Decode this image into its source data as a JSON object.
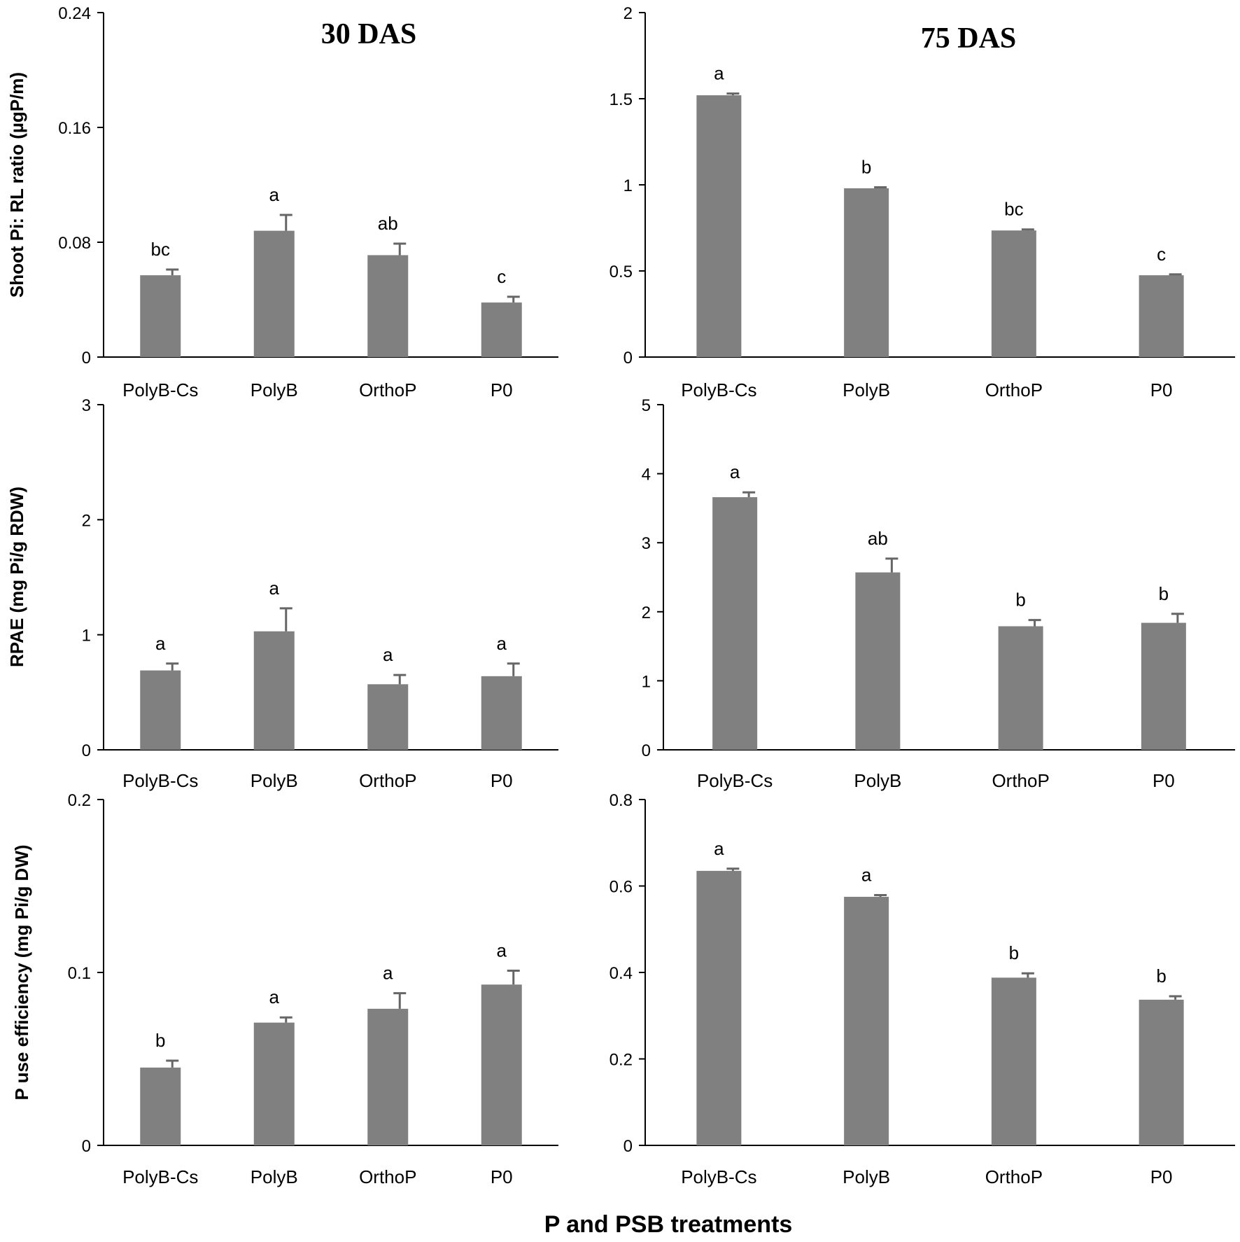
{
  "colors": {
    "bar": "#808080",
    "axis": "#000000",
    "error": "#666666"
  },
  "x_axis_title": "P and PSB treatments",
  "chart_data": [
    {
      "type": "bar",
      "title": "30 DAS",
      "ylabel": "Shoot Pi: RL ratio (µgP/m)",
      "categories": [
        "PolyB-Cs",
        "PolyB",
        "OrthoP",
        "P0"
      ],
      "values": [
        0.057,
        0.088,
        0.071,
        0.038
      ],
      "errors": [
        0.004,
        0.011,
        0.008,
        0.004
      ],
      "significance": [
        "bc",
        "a",
        "ab",
        "c"
      ],
      "ylim": [
        0,
        0.24
      ],
      "yticks": [
        0,
        0.08,
        0.16,
        0.24
      ],
      "ytick_labels": [
        "0",
        "0.08",
        "0.16",
        "0.24"
      ]
    },
    {
      "type": "bar",
      "title": "75 DAS",
      "ylabel": "",
      "categories": [
        "PolyB-Cs",
        "PolyB",
        "OrthoP",
        "P0"
      ],
      "values": [
        1.52,
        0.98,
        0.735,
        0.475
      ],
      "errors": [
        0.01,
        0.006,
        0.006,
        0.005
      ],
      "significance": [
        "a",
        "b",
        "bc",
        "c"
      ],
      "ylim": [
        0,
        2
      ],
      "yticks": [
        0,
        0.5,
        1,
        1.5,
        2
      ],
      "ytick_labels": [
        "0",
        "0.5",
        "1",
        "1.5",
        "2"
      ]
    },
    {
      "type": "bar",
      "title": "",
      "ylabel": "RPAE (mg Pi/g RDW)",
      "categories": [
        "PolyB-Cs",
        "PolyB",
        "OrthoP",
        "P0"
      ],
      "values": [
        0.69,
        1.03,
        0.57,
        0.64
      ],
      "errors": [
        0.06,
        0.2,
        0.08,
        0.11
      ],
      "significance": [
        "a",
        "a",
        "a",
        "a"
      ],
      "ylim": [
        0,
        3
      ],
      "yticks": [
        0,
        1,
        2,
        3
      ],
      "ytick_labels": [
        "0",
        "1",
        "2",
        "3"
      ]
    },
    {
      "type": "bar",
      "title": "",
      "ylabel": "",
      "categories": [
        "PolyB-Cs",
        "PolyB",
        "OrthoP",
        "P0"
      ],
      "values": [
        3.66,
        2.57,
        1.79,
        1.84
      ],
      "errors": [
        0.07,
        0.2,
        0.09,
        0.13
      ],
      "significance": [
        "a",
        "ab",
        "b",
        "b"
      ],
      "ylim": [
        0,
        5
      ],
      "yticks": [
        0,
        1,
        2,
        3,
        4,
        5
      ],
      "ytick_labels": [
        "0",
        "1",
        "2",
        "3",
        "4",
        "5"
      ]
    },
    {
      "type": "bar",
      "title": "",
      "ylabel": "P use efficiency (mg Pi/g DW)",
      "categories": [
        "PolyB-Cs",
        "PolyB",
        "OrthoP",
        "P0"
      ],
      "values": [
        0.045,
        0.071,
        0.079,
        0.093
      ],
      "errors": [
        0.004,
        0.003,
        0.009,
        0.008
      ],
      "significance": [
        "b",
        "a",
        "a",
        "a"
      ],
      "ylim": [
        0,
        0.2
      ],
      "yticks": [
        0,
        0.1,
        0.2
      ],
      "ytick_labels": [
        "0",
        "0.1",
        "0.2"
      ]
    },
    {
      "type": "bar",
      "title": "",
      "ylabel": "",
      "categories": [
        "PolyB-Cs",
        "PolyB",
        "OrthoP",
        "P0"
      ],
      "values": [
        0.635,
        0.575,
        0.388,
        0.337
      ],
      "errors": [
        0.005,
        0.004,
        0.01,
        0.008
      ],
      "significance": [
        "a",
        "a",
        "b",
        "b"
      ],
      "ylim": [
        0,
        0.8
      ],
      "yticks": [
        0,
        0.2,
        0.4,
        0.6,
        0.8
      ],
      "ytick_labels": [
        "0",
        "0.2",
        "0.4",
        "0.6",
        "0.8"
      ]
    }
  ]
}
